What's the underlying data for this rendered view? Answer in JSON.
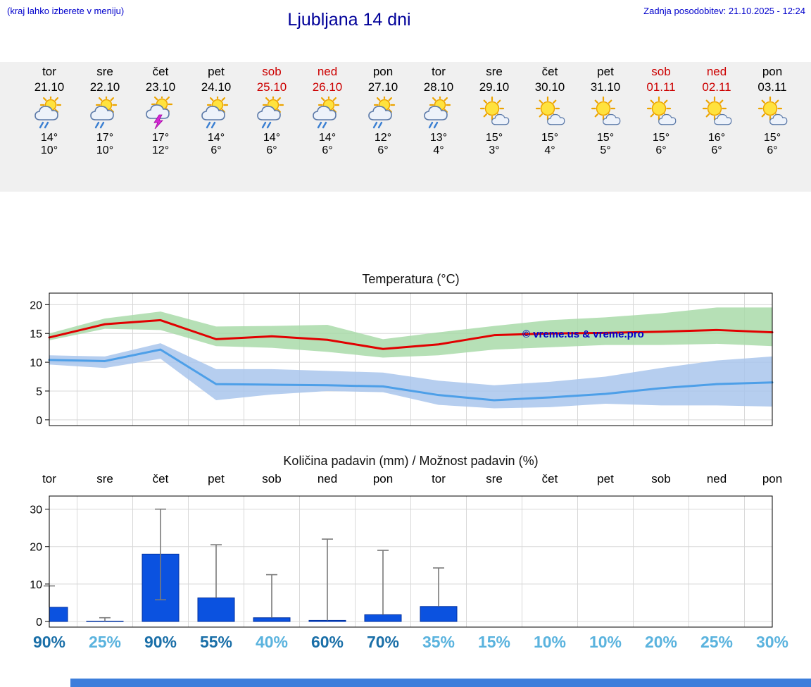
{
  "header": {
    "left_note": "(kraj lahko izberete v meniju)",
    "title": "Ljubljana 14 dni",
    "last_update": "Zadnja posodobitev: 21.10.2025 - 12:24"
  },
  "colors": {
    "link_blue": "#0000cc",
    "title_blue": "#000099",
    "temp_high_red": "#d40000",
    "temp_low_blue": "#3399dd",
    "weekend_red": "#cc0000",
    "strip_bg": "#f0f0f0",
    "bar_blue": "#0b52e0",
    "bar_stroke": "#0030a0",
    "percent_dark": "#1a6fa8",
    "percent_light": "#5ab3de",
    "max_line": "#e10000",
    "min_line": "#4d9fe8",
    "max_band": "#a9dba9",
    "min_band": "#a9c6ec",
    "footer_strip": "#3d7edb"
  },
  "forecast": {
    "days": [
      {
        "day": "tor",
        "date": "21.10",
        "weekend": false,
        "icon": "sun-cloud-rain",
        "high": "14°",
        "low": "10°"
      },
      {
        "day": "sre",
        "date": "22.10",
        "weekend": false,
        "icon": "sun-cloud-rain",
        "high": "17°",
        "low": "10°"
      },
      {
        "day": "čet",
        "date": "23.10",
        "weekend": false,
        "icon": "sun-cloud-storm",
        "high": "17°",
        "low": "12°"
      },
      {
        "day": "pet",
        "date": "24.10",
        "weekend": false,
        "icon": "sun-cloud-rain",
        "high": "14°",
        "low": "6°"
      },
      {
        "day": "sob",
        "date": "25.10",
        "weekend": true,
        "icon": "sun-cloud-rain",
        "high": "14°",
        "low": "6°"
      },
      {
        "day": "ned",
        "date": "26.10",
        "weekend": true,
        "icon": "sun-cloud-rain",
        "high": "14°",
        "low": "6°"
      },
      {
        "day": "pon",
        "date": "27.10",
        "weekend": false,
        "icon": "sun-cloud-rain",
        "high": "12°",
        "low": "6°"
      },
      {
        "day": "tor",
        "date": "28.10",
        "weekend": false,
        "icon": "sun-cloud-rain",
        "high": "13°",
        "low": "4°"
      },
      {
        "day": "sre",
        "date": "29.10",
        "weekend": false,
        "icon": "sun-cloud",
        "high": "15°",
        "low": "3°"
      },
      {
        "day": "čet",
        "date": "30.10",
        "weekend": false,
        "icon": "sun-cloud",
        "high": "15°",
        "low": "4°"
      },
      {
        "day": "pet",
        "date": "31.10",
        "weekend": false,
        "icon": "sun-cloud",
        "high": "15°",
        "low": "5°"
      },
      {
        "day": "sob",
        "date": "01.11",
        "weekend": true,
        "icon": "sun-cloud",
        "high": "15°",
        "low": "6°"
      },
      {
        "day": "ned",
        "date": "02.11",
        "weekend": true,
        "icon": "sun-cloud",
        "high": "16°",
        "low": "6°"
      },
      {
        "day": "pon",
        "date": "03.11",
        "weekend": false,
        "icon": "sun-cloud",
        "high": "15°",
        "low": "6°"
      }
    ]
  },
  "chart_data": [
    {
      "type": "line",
      "title": "Temperatura (°C)",
      "watermark": "© vreme.us & vreme.pro",
      "categories": [
        "tor",
        "sre",
        "čet",
        "pet",
        "sob",
        "ned",
        "pon",
        "tor",
        "sre",
        "čet",
        "pet",
        "sob",
        "ned",
        "pon"
      ],
      "ylim": [
        -1,
        22
      ],
      "yticks": [
        0,
        5,
        10,
        15,
        20
      ],
      "grid": true,
      "series": [
        {
          "name": "max_temp",
          "color": "#e10000",
          "values": [
            14.3,
            16.6,
            17.3,
            14.0,
            14.5,
            13.9,
            12.3,
            13.1,
            14.7,
            15.0,
            15.1,
            15.3,
            15.6,
            15.2
          ]
        },
        {
          "name": "min_temp",
          "color": "#4d9fe8",
          "values": [
            10.4,
            10.2,
            12.2,
            6.2,
            6.1,
            6.0,
            5.8,
            4.3,
            3.4,
            3.9,
            4.5,
            5.5,
            6.2,
            6.5
          ]
        }
      ],
      "bands": [
        {
          "name": "max_range",
          "color": "#a9dba9",
          "upper": [
            15.0,
            17.6,
            18.8,
            16.2,
            16.3,
            16.5,
            14.0,
            15.2,
            16.3,
            17.3,
            17.8,
            18.5,
            19.5,
            19.5
          ],
          "lower": [
            13.8,
            15.8,
            15.6,
            12.8,
            12.5,
            11.8,
            10.8,
            11.2,
            12.2,
            12.6,
            13.0,
            13.0,
            13.2,
            12.8
          ]
        },
        {
          "name": "min_range",
          "color": "#a9c6ec",
          "upper": [
            11.2,
            11.0,
            13.3,
            8.8,
            8.8,
            8.5,
            8.2,
            6.8,
            6.0,
            6.6,
            7.5,
            9.0,
            10.3,
            11.0
          ],
          "lower": [
            9.6,
            9.0,
            10.6,
            3.4,
            4.4,
            5.0,
            4.8,
            2.6,
            2.0,
            2.2,
            2.8,
            2.5,
            2.5,
            2.3
          ]
        }
      ]
    },
    {
      "type": "bar",
      "title": "Količina padavin (mm) / Možnost padavin (%)",
      "categories": [
        "tor",
        "sre",
        "čet",
        "pet",
        "sob",
        "ned",
        "pon",
        "tor",
        "sre",
        "čet",
        "pet",
        "sob",
        "ned",
        "pon"
      ],
      "ylim": [
        -1.5,
        33.5
      ],
      "yticks": [
        0,
        10,
        20,
        30
      ],
      "grid": true,
      "bar_color": "#0b52e0",
      "values_mm": [
        3.8,
        0.1,
        18.0,
        6.3,
        1.0,
        0.3,
        1.8,
        4.0,
        0,
        0,
        0,
        0,
        0,
        0
      ],
      "whisker_high": [
        9.5,
        1.0,
        30.0,
        20.5,
        12.5,
        22.0,
        19.0,
        14.3,
        null,
        null,
        null,
        null,
        null,
        null
      ],
      "whisker_low": [
        3.8,
        0.1,
        5.8,
        6.3,
        1.0,
        0.3,
        1.8,
        4.0,
        null,
        null,
        null,
        null,
        null,
        null
      ],
      "probability_pct": [
        90,
        25,
        90,
        55,
        40,
        60,
        70,
        35,
        15,
        10,
        10,
        20,
        25,
        30
      ],
      "probability_color_rule": {
        "threshold": 50,
        "at_or_above": "#1a6fa8",
        "below": "#5ab3de"
      }
    }
  ]
}
